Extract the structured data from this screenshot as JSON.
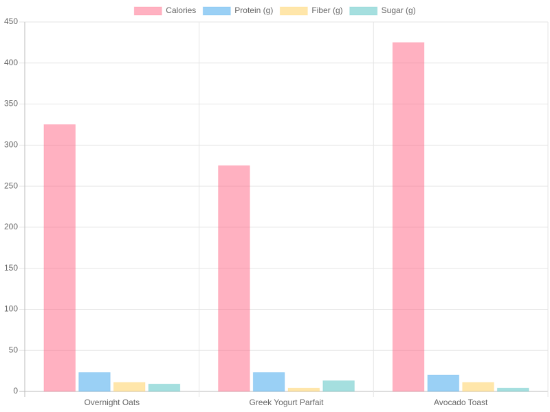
{
  "chart_data": {
    "type": "bar",
    "categories": [
      "Overnight Oats",
      "Greek Yogurt Parfait",
      "Avocado Toast"
    ],
    "series": [
      {
        "name": "Calories",
        "color": "rgba(255,99,132,0.5)",
        "border": "rgba(255,99,132,0.2)",
        "values": [
          325,
          275,
          425
        ]
      },
      {
        "name": "Protein (g)",
        "color": "rgba(54,162,235,0.5)",
        "border": "rgba(54,162,235,0.2)",
        "values": [
          23,
          23,
          20
        ]
      },
      {
        "name": "Fiber (g)",
        "color": "rgba(255,206,86,0.5)",
        "border": "rgba(255,206,86,0.2)",
        "values": [
          11,
          4,
          11
        ]
      },
      {
        "name": "Sugar (g)",
        "color": "rgba(75,192,192,0.5)",
        "border": "rgba(75,192,192,0.2)",
        "values": [
          9,
          13,
          4
        ]
      }
    ],
    "ylim": [
      0,
      450
    ],
    "yticks": [
      0,
      50,
      100,
      150,
      200,
      250,
      300,
      350,
      400,
      450
    ],
    "grid": true,
    "legend": "top"
  }
}
